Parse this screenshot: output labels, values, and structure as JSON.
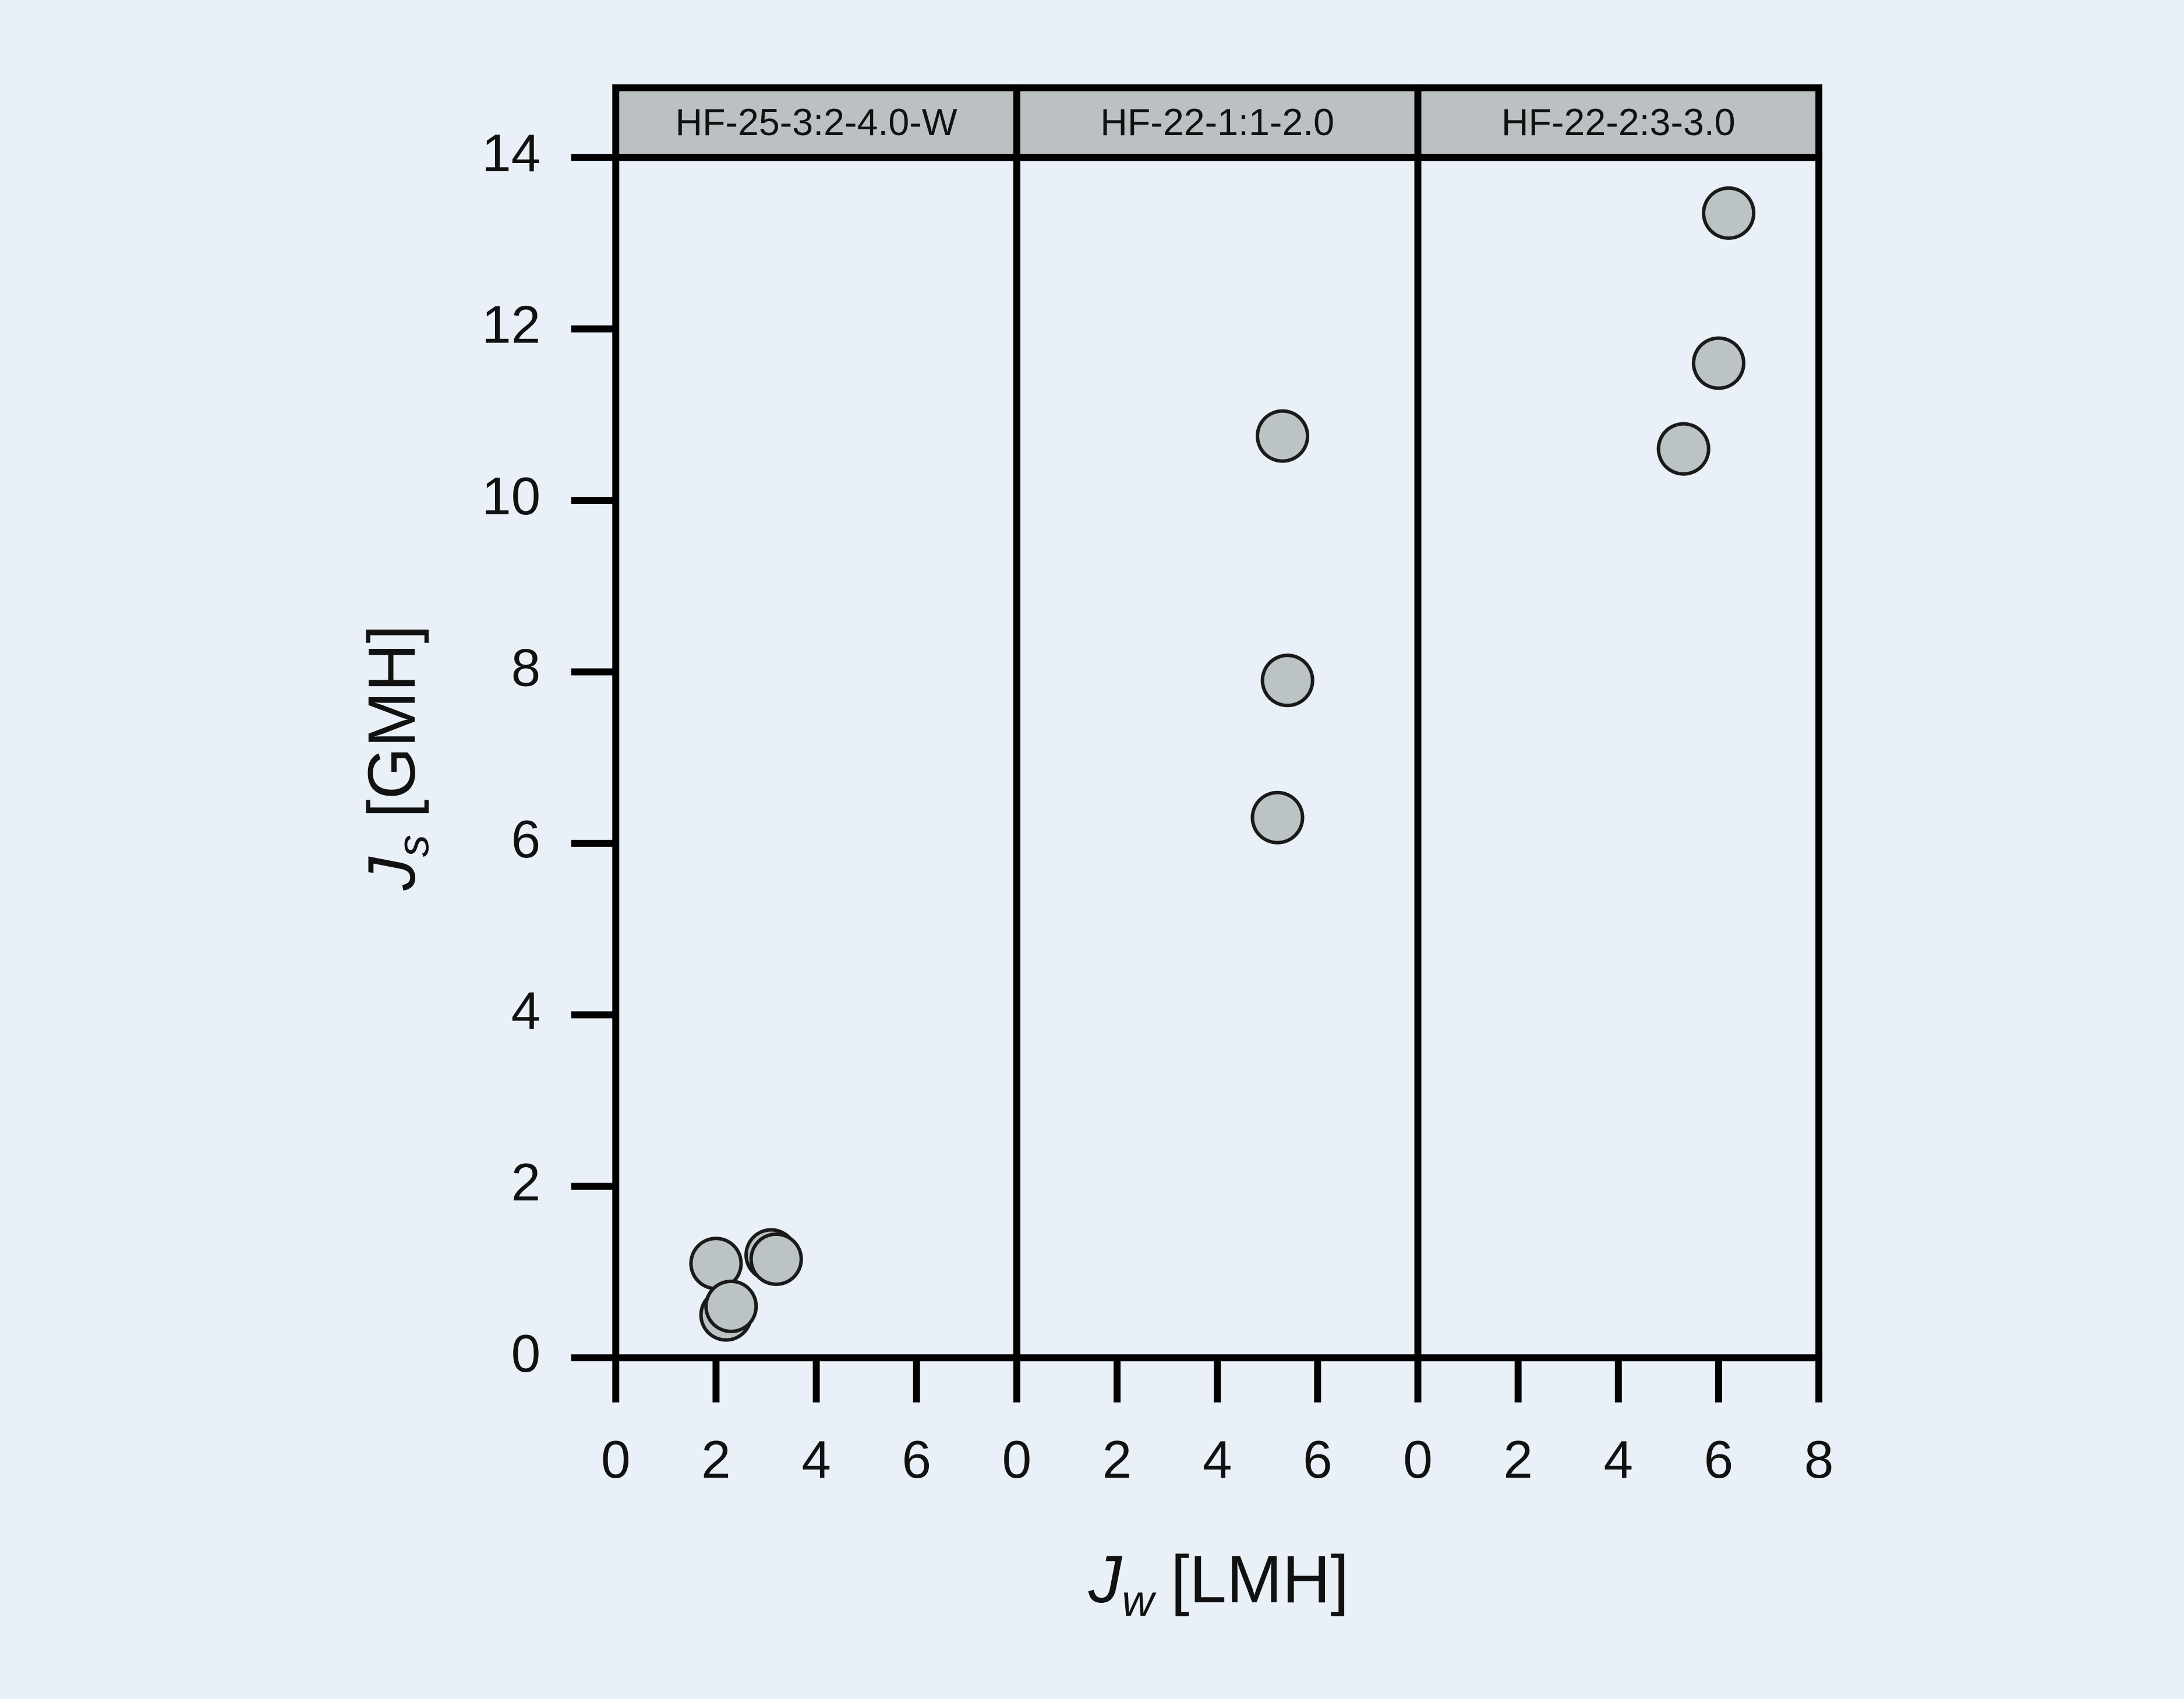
{
  "chart_data": {
    "type": "scatter",
    "y_label": {
      "symbol": "J",
      "subscript": "s",
      "unit": "[GMH]"
    },
    "x_label": {
      "symbol": "J",
      "subscript": "w",
      "unit": "[LMH]"
    },
    "ylim": [
      0,
      14
    ],
    "yticks": [
      0,
      2,
      4,
      6,
      8,
      10,
      12,
      14
    ],
    "xlim": [
      0,
      8
    ],
    "color": "#bcc3c5",
    "panels": [
      {
        "title": "HF-25-3:2-4.0-W",
        "xticks": [
          0,
          2,
          4,
          6
        ],
        "x": [
          2.0,
          2.2,
          2.3,
          3.1,
          3.2
        ],
        "values": [
          1.1,
          0.5,
          0.6,
          1.2,
          1.15
        ]
      },
      {
        "title": "HF-22-1:1-2.0",
        "xticks": [
          0,
          2,
          4,
          6
        ],
        "x": [
          5.3,
          5.4,
          5.2
        ],
        "values": [
          10.75,
          7.9,
          6.3
        ]
      },
      {
        "title": "HF-22-2:3-3.0",
        "xticks": [
          0,
          2,
          4,
          6,
          8
        ],
        "x": [
          6.2,
          6.0,
          5.3
        ],
        "values": [
          13.35,
          11.6,
          10.6
        ]
      }
    ]
  }
}
